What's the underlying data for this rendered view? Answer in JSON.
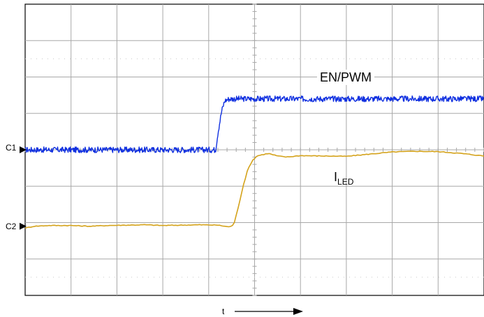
{
  "chart_data": {
    "type": "line",
    "title": "",
    "xlabel": "t",
    "ylabel": "",
    "grid": true,
    "x_divisions": 10,
    "y_divisions": 8,
    "xlim": [
      0,
      10
    ],
    "ylim": [
      0,
      8
    ],
    "channel_markers": [
      {
        "label": "C1",
        "level": 4.0
      },
      {
        "label": "C2",
        "level": 1.9
      }
    ],
    "series": [
      {
        "name": "EN/PWM",
        "color": "#1030e0",
        "x": [
          0,
          1,
          2,
          3,
          4,
          4.15,
          4.2,
          4.28,
          4.35,
          4.45,
          5,
          6,
          7,
          8,
          9,
          10
        ],
        "y": [
          4.0,
          4.0,
          4.0,
          4.0,
          4.0,
          4.0,
          4.45,
          5.05,
          5.35,
          5.4,
          5.4,
          5.4,
          5.4,
          5.4,
          5.4,
          5.4
        ]
      },
      {
        "name": "I_LED",
        "color": "#d4a21a",
        "x": [
          0,
          0.2,
          0.5,
          1,
          1.4,
          1.8,
          2.2,
          2.6,
          3,
          3.4,
          3.8,
          4.2,
          4.45,
          4.55,
          4.65,
          4.75,
          4.85,
          4.95,
          5.05,
          5.15,
          5.3,
          5.5,
          5.7,
          6,
          6.5,
          7,
          7.5,
          8,
          8.5,
          9,
          9.5,
          10
        ],
        "y": [
          1.85,
          1.9,
          1.92,
          1.92,
          1.9,
          1.92,
          1.93,
          1.94,
          1.92,
          1.93,
          1.94,
          1.93,
          1.88,
          1.95,
          2.45,
          3.0,
          3.45,
          3.7,
          3.83,
          3.86,
          3.9,
          3.83,
          3.8,
          3.84,
          3.83,
          3.82,
          3.88,
          3.94,
          3.96,
          3.95,
          3.9,
          3.83
        ]
      }
    ],
    "annotations": [
      {
        "text": "EN/PWM",
        "series": "EN/PWM"
      },
      {
        "text": "I",
        "subscript": "LED",
        "series": "I_LED"
      }
    ]
  }
}
